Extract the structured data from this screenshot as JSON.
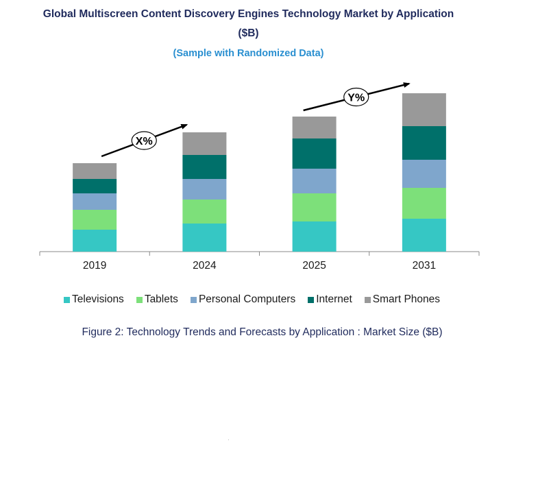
{
  "title_line1": "Global Multiscreen Content Discovery Engines Technology Market by Application",
  "title_line2": "($B)",
  "subtitle": "(Sample with Randomized Data)",
  "caption": "Figure 2: Technology  Trends  and Forecasts by Application : Market Size ($B)",
  "annotations": {
    "first": "X%",
    "second": "Y%"
  },
  "chart_data": {
    "type": "bar",
    "stacked": true,
    "categories": [
      "2019",
      "2024",
      "2025",
      "2031"
    ],
    "series": [
      {
        "name": "Televisions",
        "color": "#36c7c4",
        "values": [
          32,
          41,
          44,
          48
        ]
      },
      {
        "name": "Tablets",
        "color": "#7de07a",
        "values": [
          29,
          35,
          41,
          45
        ]
      },
      {
        "name": "Personal Computers",
        "color": "#7fa6cc",
        "values": [
          24,
          30,
          36,
          41
        ]
      },
      {
        "name": "Internet",
        "color": "#00706a",
        "values": [
          21,
          35,
          44,
          49
        ]
      },
      {
        "name": "Smart Phones",
        "color": "#999999",
        "values": [
          23,
          33,
          32,
          48
        ]
      }
    ],
    "legend_position": "bottom",
    "grid": false,
    "axis_visible": false
  }
}
